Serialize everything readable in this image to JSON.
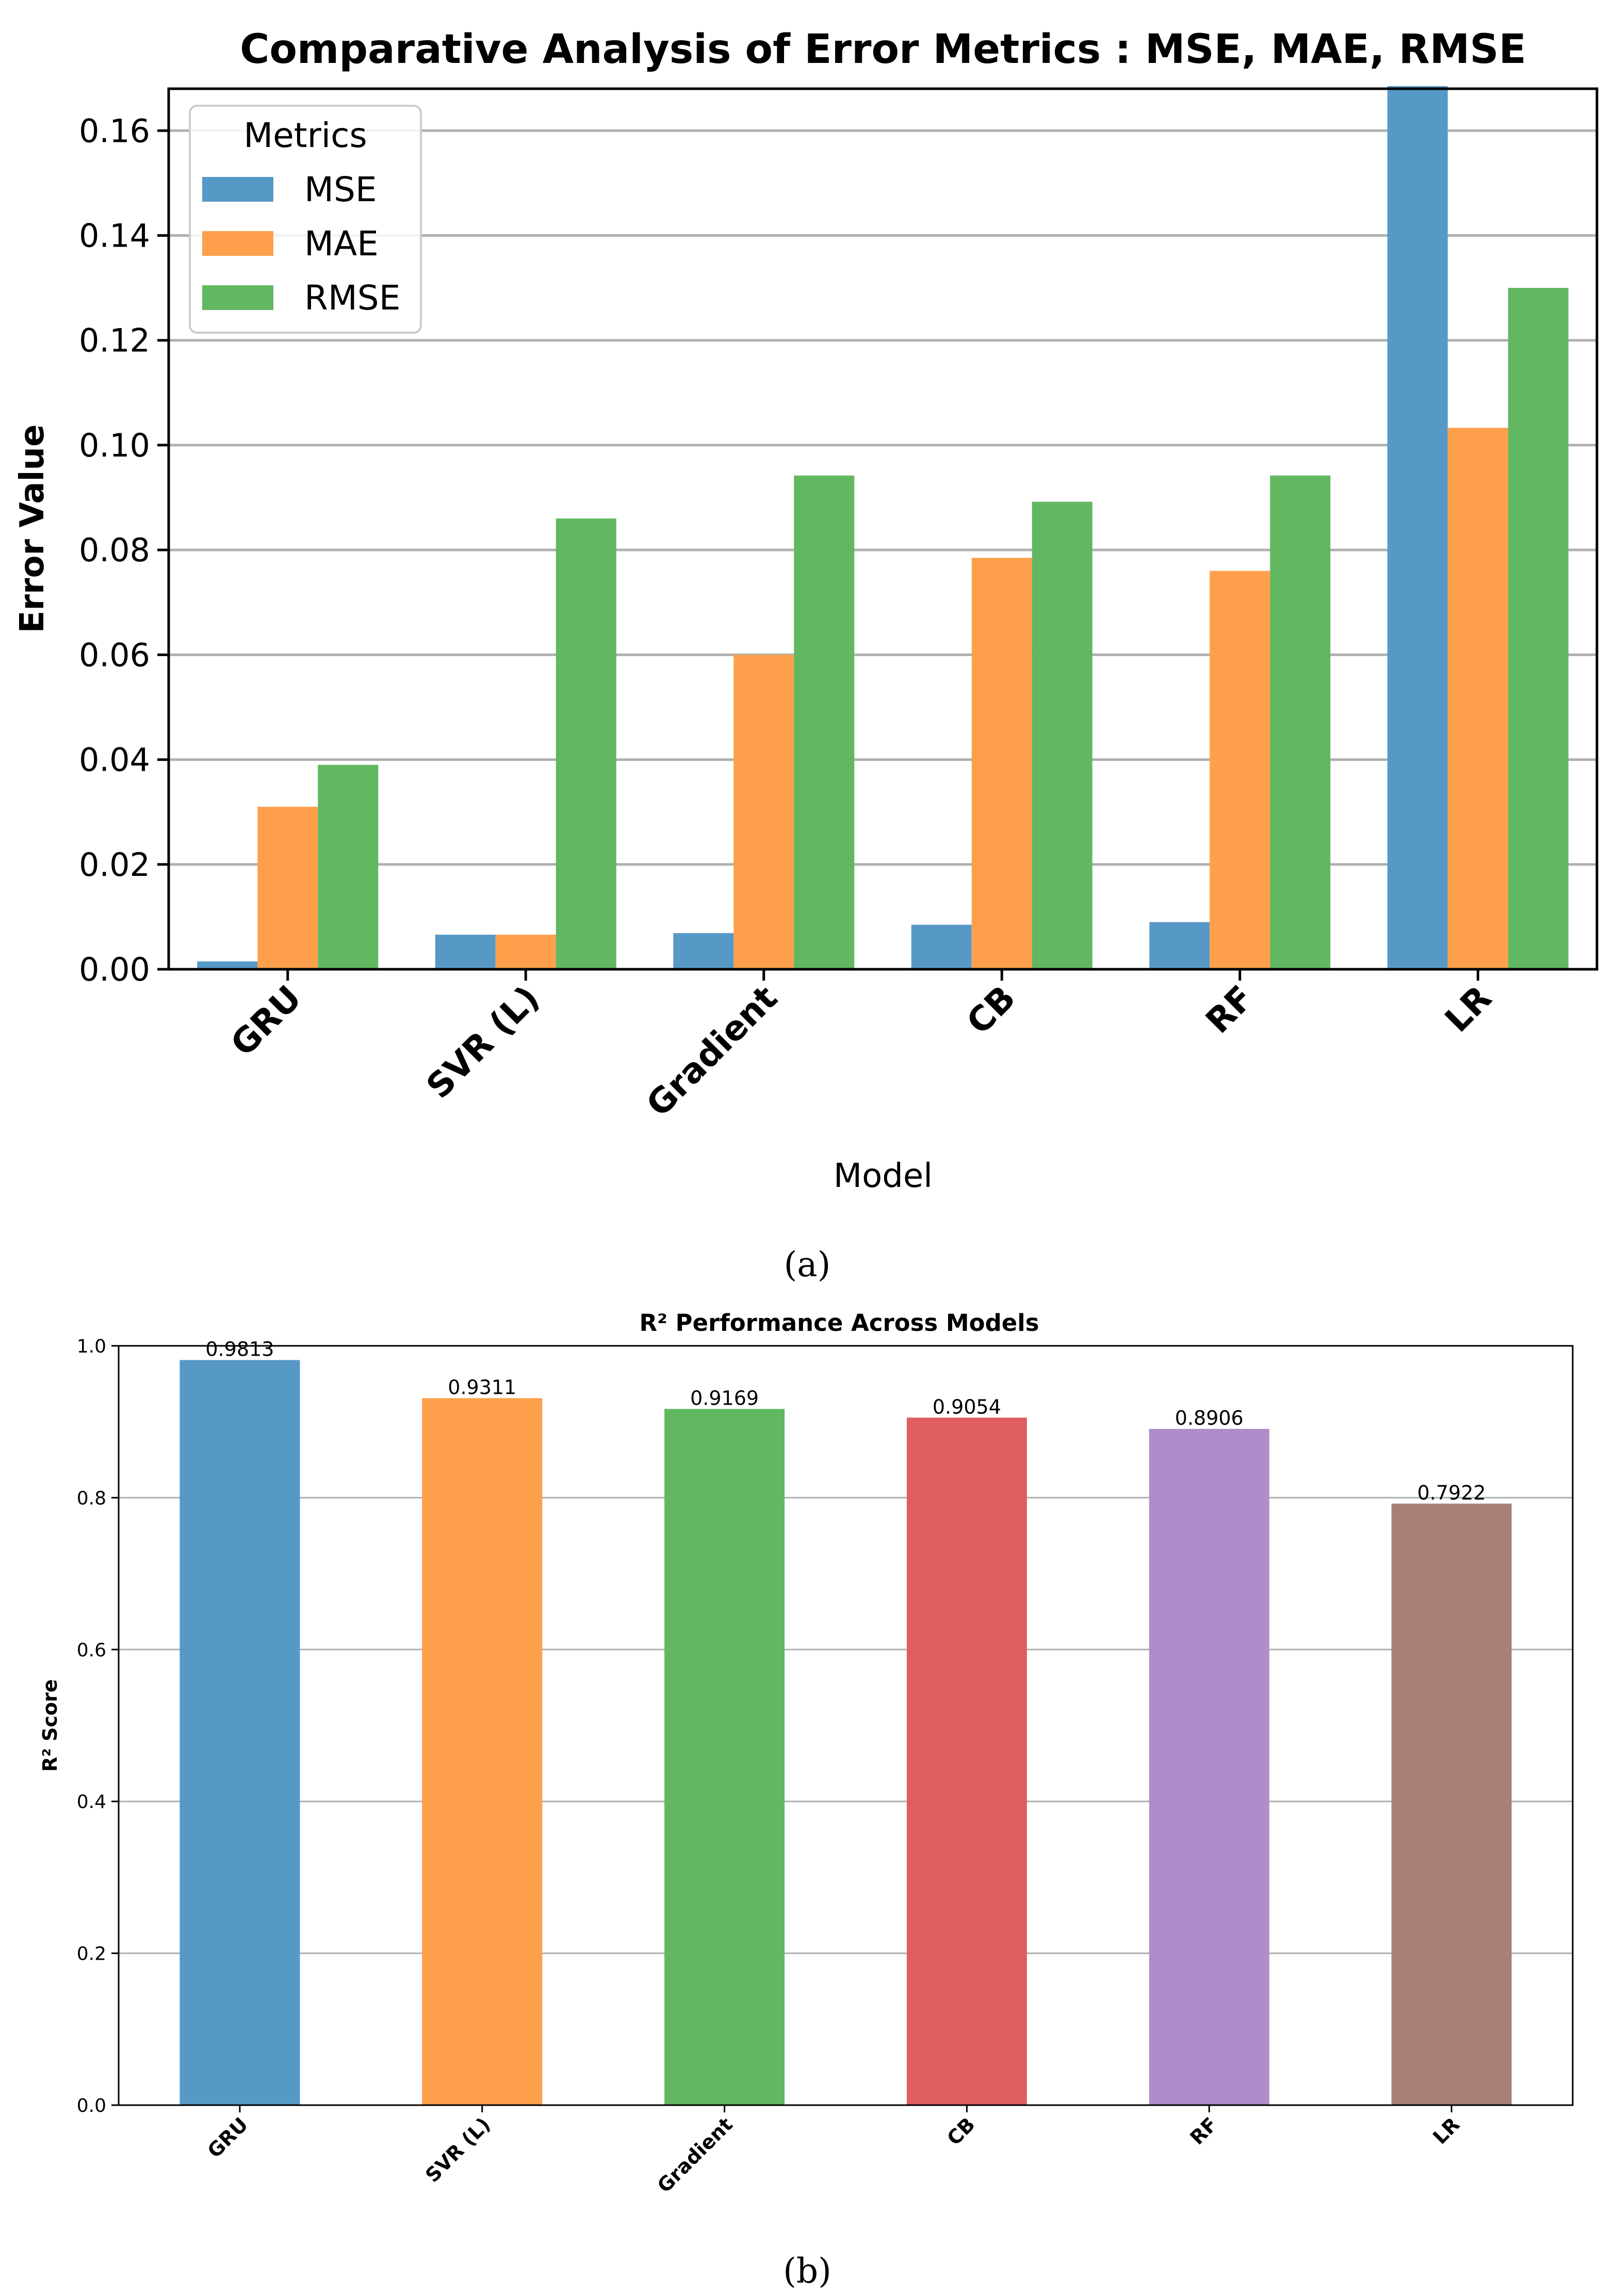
{
  "chart_data": [
    {
      "type": "bar",
      "title": "Comparative Analysis of Error Metrics : MSE, MAE, RMSE",
      "xlabel": "Model",
      "ylabel": "Error Value",
      "ylim": [
        0,
        0.168
      ],
      "yticks": [
        "0.00",
        "0.02",
        "0.04",
        "0.06",
        "0.08",
        "0.10",
        "0.12",
        "0.14",
        "0.16"
      ],
      "grid": true,
      "legend_title": "Metrics",
      "legend_position": "top-left",
      "categories": [
        "GRU",
        "SVR (L)",
        "Gradient",
        "CB",
        "RF",
        "LR"
      ],
      "series": [
        {
          "name": "MSE",
          "color": "#5799c6",
          "values": [
            0.0015,
            0.0066,
            0.0069,
            0.0085,
            0.009,
            0.1685
          ]
        },
        {
          "name": "MAE",
          "color": "#fe9f4c",
          "values": [
            0.031,
            0.0066,
            0.06,
            0.0785,
            0.076,
            0.1033
          ]
        },
        {
          "name": "RMSE",
          "color": "#61b861",
          "values": [
            0.039,
            0.086,
            0.0942,
            0.0892,
            0.0942,
            0.13
          ]
        }
      ],
      "caption": "(a)"
    },
    {
      "type": "bar",
      "title": "R² Performance Across Models",
      "xlabel": "",
      "ylabel": "R² Score",
      "ylim": [
        0,
        1.0
      ],
      "yticks": [
        "0.0",
        "0.2",
        "0.4",
        "0.6",
        "0.8",
        "1.0"
      ],
      "grid": true,
      "categories": [
        "GRU",
        "SVR (L)",
        "Gradient",
        "CB",
        "RF",
        "LR"
      ],
      "values": [
        0.9813,
        0.9311,
        0.9169,
        0.9054,
        0.8906,
        0.7922
      ],
      "value_labels": [
        "0.9813",
        "0.9311",
        "0.9169",
        "0.9054",
        "0.8906",
        "0.7922"
      ],
      "colors": [
        "#5799c6",
        "#fe9f4c",
        "#61b861",
        "#df5e5e",
        "#ae8dca",
        "#a88077"
      ],
      "caption": "(b)"
    }
  ]
}
